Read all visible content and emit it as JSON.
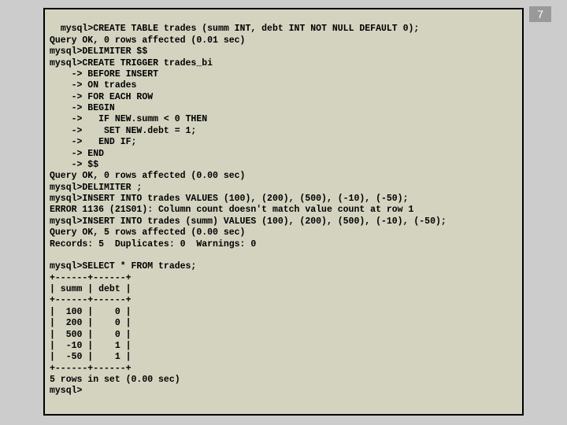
{
  "page_number": "7",
  "terminal": {
    "background_color": "#d3d3c0",
    "border_color": "#000000",
    "font_family": "Courier New",
    "font_size": 11.5,
    "lines": [
      "mysql>CREATE TABLE trades (summ INT, debt INT NOT NULL DEFAULT 0);",
      "Query OK, 0 rows affected (0.01 sec)",
      "mysql>DELIMITER $$",
      "mysql>CREATE TRIGGER trades_bi",
      "    -> BEFORE INSERT",
      "    -> ON trades",
      "    -> FOR EACH ROW",
      "    -> BEGIN",
      "    ->   IF NEW.summ < 0 THEN",
      "    ->    SET NEW.debt = 1;",
      "    ->   END IF;",
      "    -> END",
      "    -> $$",
      "Query OK, 0 rows affected (0.00 sec)",
      "mysql>DELIMITER ;",
      "mysql>INSERT INTO trades VALUES (100), (200), (500), (-10), (-50);",
      "ERROR 1136 (21S01): Column count doesn't match value count at row 1",
      "mysql>INSERT INTO trades (summ) VALUES (100), (200), (500), (-10), (-50);",
      "Query OK, 5 rows affected (0.00 sec)",
      "Records: 5  Duplicates: 0  Warnings: 0",
      "",
      "mysql>SELECT * FROM trades;",
      "+------+------+",
      "| summ | debt |",
      "+------+------+",
      "|  100 |    0 |",
      "|  200 |    0 |",
      "|  500 |    0 |",
      "|  -10 |    1 |",
      "|  -50 |    1 |",
      "+------+------+",
      "5 rows in set (0.00 sec)",
      "mysql>"
    ]
  }
}
